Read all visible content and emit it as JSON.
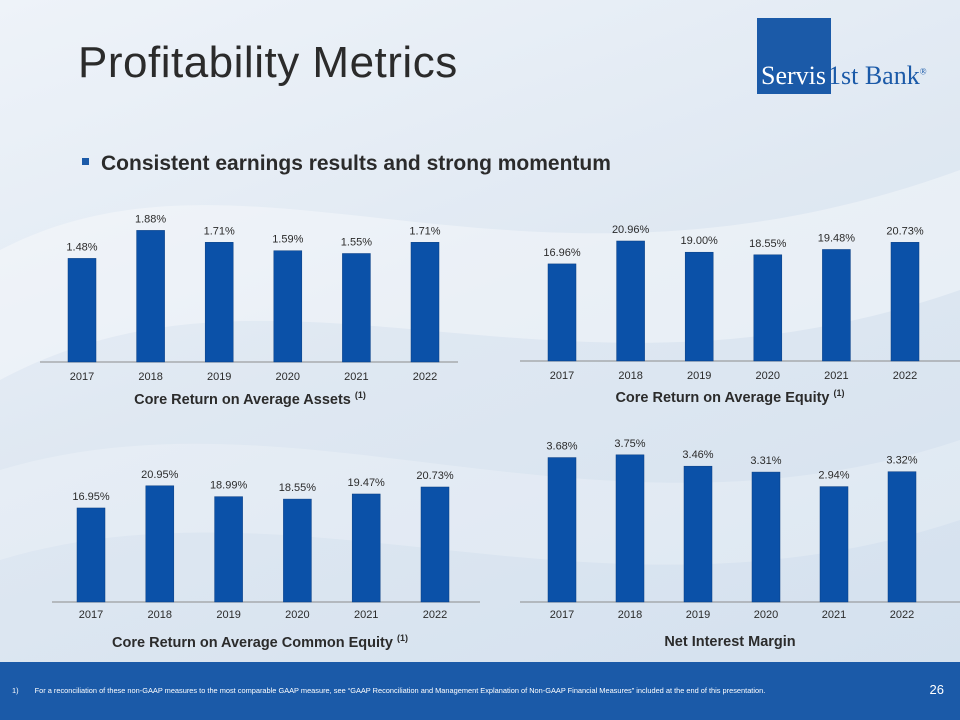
{
  "title": "Profitability Metrics",
  "logo": {
    "part1": "Servis",
    "part2": "1st Bank",
    "reg": "®"
  },
  "bullet": "Consistent earnings results and strong momentum",
  "colors": {
    "bar": "#0b51a8",
    "axis": "#8c8c8c",
    "footer": "#1b5aa8"
  },
  "chart_data": [
    {
      "type": "bar",
      "title": "Core Return on Average Assets",
      "title_sup": "(1)",
      "categories": [
        "2017",
        "2018",
        "2019",
        "2020",
        "2021",
        "2022"
      ],
      "values": [
        1.48,
        1.88,
        1.71,
        1.59,
        1.55,
        1.71
      ],
      "labels": [
        "1.48%",
        "1.88%",
        "1.71%",
        "1.59%",
        "1.55%",
        "1.71%"
      ],
      "ylim": [
        0,
        2.1
      ]
    },
    {
      "type": "bar",
      "title": "Core Return on Average Equity",
      "title_sup": "(1)",
      "categories": [
        "2017",
        "2018",
        "2019",
        "2020",
        "2021",
        "2022"
      ],
      "values": [
        16.96,
        20.96,
        19.0,
        18.55,
        19.48,
        20.73
      ],
      "labels": [
        "16.96%",
        "20.96%",
        "19.00%",
        "18.55%",
        "19.48%",
        "20.73%"
      ],
      "ylim": [
        0,
        25.5
      ]
    },
    {
      "type": "bar",
      "title": "Core Return on Average Common Equity",
      "title_sup": "(1)",
      "categories": [
        "2017",
        "2018",
        "2019",
        "2020",
        "2021",
        "2022"
      ],
      "values": [
        16.95,
        20.95,
        18.99,
        18.55,
        19.47,
        20.73
      ],
      "labels": [
        "16.95%",
        "20.95%",
        "18.99%",
        "18.55%",
        "19.47%",
        "20.73%"
      ],
      "ylim": [
        0,
        28.3
      ]
    },
    {
      "type": "bar",
      "title": "Net Interest Margin",
      "title_sup": "",
      "categories": [
        "2017",
        "2018",
        "2019",
        "2020",
        "2021",
        "2022"
      ],
      "values": [
        3.68,
        3.75,
        3.46,
        3.31,
        2.94,
        3.32
      ],
      "labels": [
        "3.68%",
        "3.75%",
        "3.46%",
        "3.31%",
        "2.94%",
        "3.32%"
      ],
      "ylim": [
        0,
        4.0
      ]
    }
  ],
  "footnote": {
    "num": "1)",
    "text": "For a reconciliation of these non-GAAP measures to the most comparable GAAP measure, see “GAAP Reconciliation and Management Explanation of Non-GAAP Financial Measures” included at the end of this presentation."
  },
  "page_number": "26"
}
